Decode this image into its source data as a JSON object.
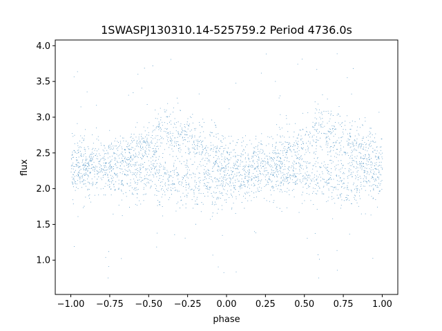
{
  "chart_data": {
    "type": "scatter",
    "title": "1SWASPJ130310.14-525759.2 Period 4736.0s",
    "xlabel": "phase",
    "ylabel": "flux",
    "xlim": [
      -1.1,
      1.1
    ],
    "ylim": [
      0.52,
      4.08
    ],
    "xticks": [
      -1.0,
      -0.75,
      -0.5,
      -0.25,
      0.0,
      0.25,
      0.5,
      0.75,
      1.0
    ],
    "xtick_labels": [
      "−1.00",
      "−0.75",
      "−0.50",
      "−0.25",
      "0.00",
      "0.25",
      "0.50",
      "0.75",
      "1.00"
    ],
    "yticks": [
      1.0,
      1.5,
      2.0,
      2.5,
      3.0,
      3.5,
      4.0
    ],
    "ytick_labels": [
      "1.0",
      "1.5",
      "2.0",
      "2.5",
      "3.0",
      "3.5",
      "4.0"
    ],
    "grid": false,
    "marker_color": "#1f77b4",
    "series": [
      {
        "phase_range": [
          -1.0,
          1.0
        ],
        "point_count": 24000,
        "description_profile": {
          "phase": [
            -1.0,
            -0.75,
            -0.5,
            -0.4,
            -0.25,
            0.0,
            0.25,
            0.5,
            0.6,
            0.75,
            1.0
          ],
          "flux_upper_mean": [
            2.4,
            2.35,
            2.6,
            2.85,
            2.7,
            2.4,
            2.35,
            2.6,
            2.85,
            2.7,
            2.4
          ],
          "flux_lower_mean": [
            2.2,
            2.25,
            2.2,
            2.15,
            2.1,
            2.05,
            2.2,
            2.2,
            2.15,
            2.1,
            2.2
          ]
        }
      }
    ]
  }
}
